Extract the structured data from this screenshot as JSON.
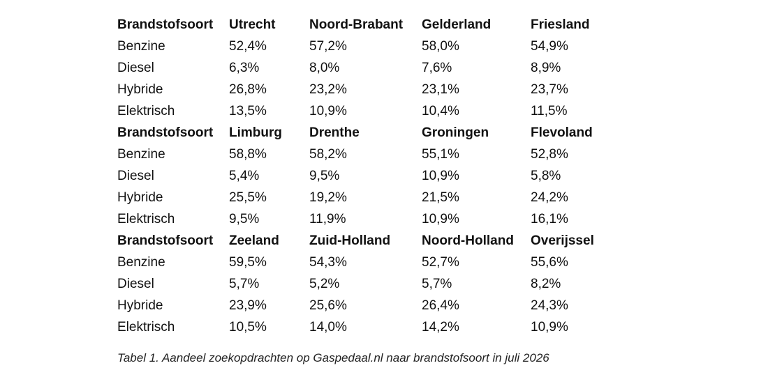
{
  "table": {
    "blocks": [
      {
        "header": [
          "Brandstofsoort",
          "Utrecht",
          "Noord-Brabant",
          "Gelderland",
          "Friesland"
        ],
        "rows": [
          [
            "Benzine",
            "52,4%",
            "57,2%",
            "58,0%",
            "54,9%"
          ],
          [
            "Diesel",
            "6,3%",
            "8,0%",
            "7,6%",
            "8,9%"
          ],
          [
            "Hybride",
            "26,8%",
            "23,2%",
            "23,1%",
            "23,7%"
          ],
          [
            "Elektrisch",
            "13,5%",
            "10,9%",
            "10,4%",
            "11,5%"
          ]
        ]
      },
      {
        "header": [
          "Brandstofsoort",
          "Limburg",
          "Drenthe",
          "Groningen",
          "Flevoland"
        ],
        "rows": [
          [
            "Benzine",
            "58,8%",
            "58,2%",
            "55,1%",
            "52,8%"
          ],
          [
            "Diesel",
            "5,4%",
            "9,5%",
            "10,9%",
            "5,8%"
          ],
          [
            "Hybride",
            "25,5%",
            "19,2%",
            "21,5%",
            "24,2%"
          ],
          [
            "Elektrisch",
            "9,5%",
            "11,9%",
            "10,9%",
            "16,1%"
          ]
        ]
      },
      {
        "header": [
          "Brandstofsoort",
          "Zeeland",
          "Zuid-Holland",
          "Noord-Holland",
          "Overijssel"
        ],
        "rows": [
          [
            "Benzine",
            "59,5%",
            "54,3%",
            "52,7%",
            "55,6%"
          ],
          [
            "Diesel",
            "5,7%",
            "5,2%",
            "5,7%",
            "8,2%"
          ],
          [
            "Hybride",
            "23,9%",
            "25,6%",
            "26,4%",
            "24,3%"
          ],
          [
            "Elektrisch",
            "10,5%",
            "14,0%",
            "14,2%",
            "10,9%"
          ]
        ]
      }
    ]
  },
  "caption": "Tabel 1. Aandeel zoekopdrachten op Gaspedaal.nl naar brandstofsoort in juli 2026"
}
